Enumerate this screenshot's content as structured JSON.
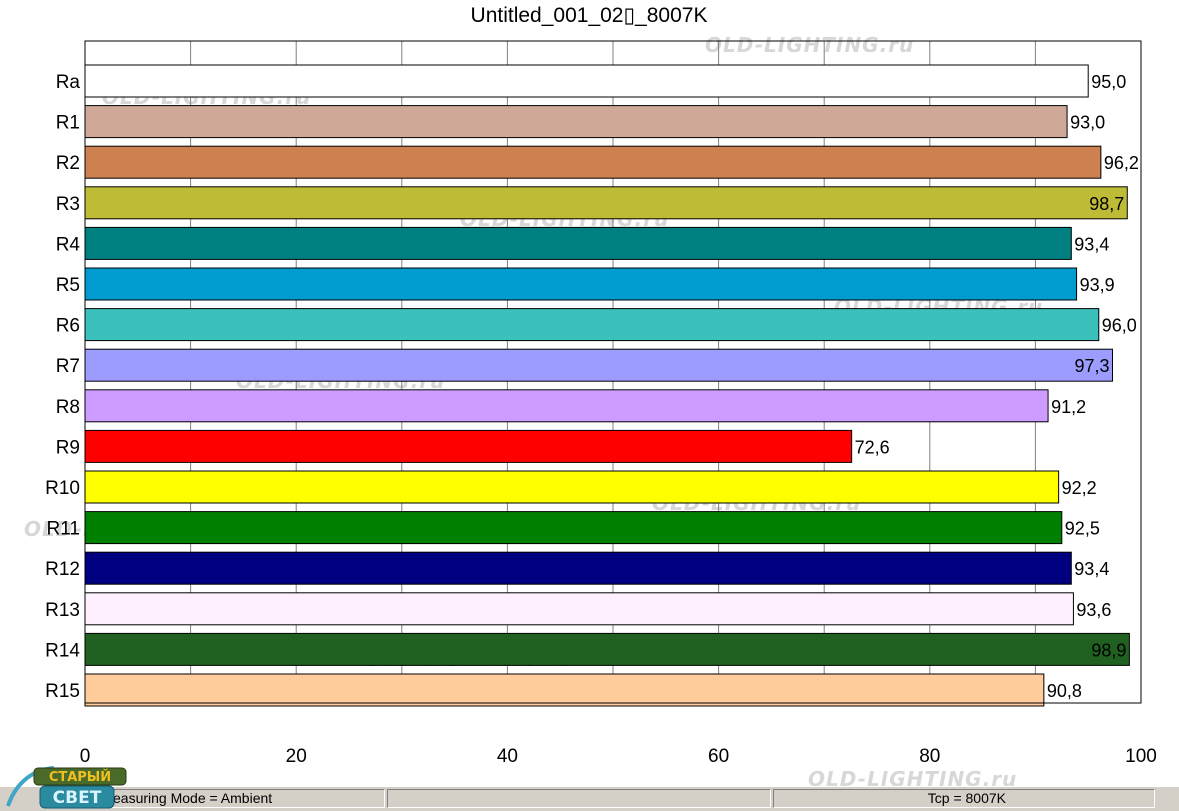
{
  "window": {
    "title": "Untitled_001_02▯_8007K"
  },
  "status": {
    "mode": "easuring Mode = Ambient",
    "panel2": "",
    "panel3": "",
    "tcp": "Tcp = 8007K"
  },
  "logo": {
    "line1": "СТАРЫЙ",
    "line2": "СВЕТ"
  },
  "watermark_text": "OLD-LIGHTING.ru",
  "chart_data": {
    "type": "bar",
    "orientation": "horizontal",
    "title": "Untitled_001_02▯_8007K",
    "xlabel": "",
    "ylabel": "",
    "xlim": [
      0,
      100
    ],
    "xticks": [
      0,
      20,
      40,
      60,
      80,
      100
    ],
    "grid": true,
    "categories": [
      "Ra",
      "R1",
      "R2",
      "R3",
      "R4",
      "R5",
      "R6",
      "R7",
      "R8",
      "R9",
      "R10",
      "R11",
      "R12",
      "R13",
      "R14",
      "R15"
    ],
    "values": [
      95.0,
      93.0,
      96.2,
      98.7,
      93.4,
      93.9,
      96.0,
      97.3,
      91.2,
      72.6,
      92.2,
      92.5,
      93.4,
      93.6,
      98.9,
      90.8
    ],
    "value_labels": [
      "95,0",
      "93,0",
      "96,2",
      "98,7",
      "93,4",
      "93,9",
      "96,0",
      "97,3",
      "91,2",
      "72,6",
      "92,2",
      "92,5",
      "93,4",
      "93,6",
      "98,9",
      "90,8"
    ],
    "colors": [
      "#ffffff",
      "#cfa898",
      "#cd8050",
      "#bebc36",
      "#008080",
      "#009ccf",
      "#3cc0bc",
      "#9c9cff",
      "#cc9cff",
      "#ff0000",
      "#ffff00",
      "#008000",
      "#000080",
      "#fff0ff",
      "#206020",
      "#ffcc9c"
    ]
  }
}
